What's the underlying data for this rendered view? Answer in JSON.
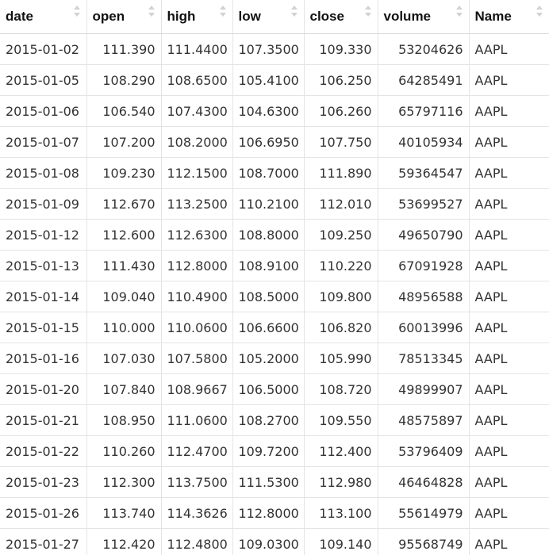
{
  "columns": [
    {
      "key": "date",
      "label": "date",
      "align": "left"
    },
    {
      "key": "open",
      "label": "open",
      "align": "right"
    },
    {
      "key": "high",
      "label": "high",
      "align": "left"
    },
    {
      "key": "low",
      "label": "low",
      "align": "left"
    },
    {
      "key": "close",
      "label": "close",
      "align": "right"
    },
    {
      "key": "volume",
      "label": "volume",
      "align": "right"
    },
    {
      "key": "Name",
      "label": "Name",
      "align": "left"
    }
  ],
  "rows": [
    [
      "2015-01-02",
      "111.390",
      "111.4400",
      "107.3500",
      "109.330",
      "53204626",
      "AAPL"
    ],
    [
      "2015-01-05",
      "108.290",
      "108.6500",
      "105.4100",
      "106.250",
      "64285491",
      "AAPL"
    ],
    [
      "2015-01-06",
      "106.540",
      "107.4300",
      "104.6300",
      "106.260",
      "65797116",
      "AAPL"
    ],
    [
      "2015-01-07",
      "107.200",
      "108.2000",
      "106.6950",
      "107.750",
      "40105934",
      "AAPL"
    ],
    [
      "2015-01-08",
      "109.230",
      "112.1500",
      "108.7000",
      "111.890",
      "59364547",
      "AAPL"
    ],
    [
      "2015-01-09",
      "112.670",
      "113.2500",
      "110.2100",
      "112.010",
      "53699527",
      "AAPL"
    ],
    [
      "2015-01-12",
      "112.600",
      "112.6300",
      "108.8000",
      "109.250",
      "49650790",
      "AAPL"
    ],
    [
      "2015-01-13",
      "111.430",
      "112.8000",
      "108.9100",
      "110.220",
      "67091928",
      "AAPL"
    ],
    [
      "2015-01-14",
      "109.040",
      "110.4900",
      "108.5000",
      "109.800",
      "48956588",
      "AAPL"
    ],
    [
      "2015-01-15",
      "110.000",
      "110.0600",
      "106.6600",
      "106.820",
      "60013996",
      "AAPL"
    ],
    [
      "2015-01-16",
      "107.030",
      "107.5800",
      "105.2000",
      "105.990",
      "78513345",
      "AAPL"
    ],
    [
      "2015-01-20",
      "107.840",
      "108.9667",
      "106.5000",
      "108.720",
      "49899907",
      "AAPL"
    ],
    [
      "2015-01-21",
      "108.950",
      "111.0600",
      "108.2700",
      "109.550",
      "48575897",
      "AAPL"
    ],
    [
      "2015-01-22",
      "110.260",
      "112.4700",
      "109.7200",
      "112.400",
      "53796409",
      "AAPL"
    ],
    [
      "2015-01-23",
      "112.300",
      "113.7500",
      "111.5300",
      "112.980",
      "46464828",
      "AAPL"
    ],
    [
      "2015-01-26",
      "113.740",
      "114.3626",
      "112.8000",
      "113.100",
      "55614979",
      "AAPL"
    ],
    [
      "2015-01-27",
      "112.420",
      "112.4800",
      "109.0300",
      "109.140",
      "95568749",
      "AAPL"
    ]
  ]
}
